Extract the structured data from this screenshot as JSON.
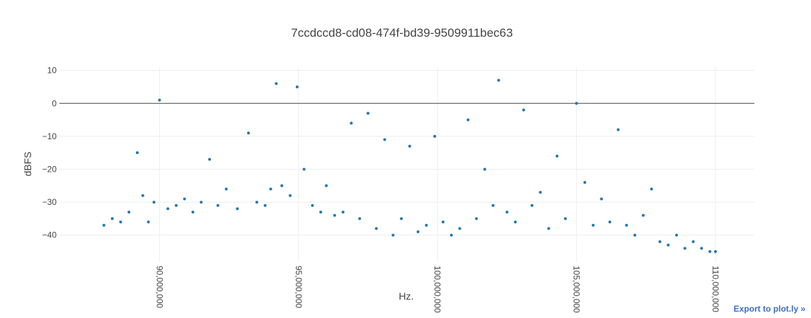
{
  "export_link": {
    "label": "Export to plot.ly »"
  },
  "chart_data": {
    "type": "scatter",
    "title": "7ccdccd8-cd08-474f-bd39-9509911bec63",
    "xlabel": "Hz.",
    "ylabel": "dBFS",
    "xlim": [
      86400000,
      111400000
    ],
    "ylim": [
      -48,
      11
    ],
    "xticks": [
      90000000,
      95000000,
      100000000,
      105000000,
      110000000
    ],
    "xtick_labels": [
      "90,000,000",
      "95,000,000",
      "100,000,000",
      "105,000,000",
      "110,000,000"
    ],
    "yticks": [
      10,
      0,
      -10,
      -20,
      -30,
      -40
    ],
    "ytick_labels": [
      "10",
      "0",
      "−10",
      "−20",
      "−30",
      "−40"
    ],
    "grid": true,
    "zero_line": true,
    "marker_color": "#1f77b4",
    "series": [
      {
        "x": [
          88000000,
          88300000,
          88600000,
          88900000,
          89200000,
          89400000,
          89600000,
          89800000,
          90000000,
          90300000,
          90600000,
          90900000,
          91200000,
          91500000,
          91800000,
          92100000,
          92400000,
          92800000,
          93200000,
          93500000,
          93800000,
          94000000,
          94200000,
          94400000,
          94700000,
          94950000,
          95200000,
          95500000,
          95800000,
          96000000,
          96300000,
          96600000,
          96900000,
          97200000,
          97500000,
          97800000,
          98100000,
          98400000,
          98700000,
          99000000,
          99300000,
          99600000,
          99900000,
          100200000,
          100500000,
          100800000,
          101100000,
          101400000,
          101700000,
          102000000,
          102200000,
          102500000,
          102800000,
          103100000,
          103400000,
          103700000,
          104000000,
          104300000,
          104600000,
          105000000,
          105300000,
          105600000,
          105900000,
          106200000,
          106500000,
          106800000,
          107100000,
          107400000,
          107700000,
          108000000,
          108300000,
          108600000,
          108900000,
          109200000,
          109500000,
          109800000,
          110000000
        ],
        "y": [
          -37,
          -35,
          -36,
          -33,
          -15,
          -28,
          -36,
          -30,
          1,
          -32,
          -31,
          -29,
          -33,
          -30,
          -17,
          -31,
          -26,
          -32,
          -9,
          -30,
          -31,
          -26,
          6,
          -25,
          -28,
          5,
          -20,
          -31,
          -33,
          -25,
          -34,
          -33,
          -6,
          -35,
          -3,
          -38,
          -11,
          -40,
          -35,
          -13,
          -39,
          -37,
          -10,
          -36,
          -40,
          -38,
          -5,
          -35,
          -20,
          -31,
          7,
          -33,
          -36,
          -2,
          -31,
          -27,
          -38,
          -16,
          -35,
          0,
          -24,
          -37,
          -29,
          -36,
          -8,
          -37,
          -40,
          -34,
          -26,
          -42,
          -43,
          -40,
          -44,
          -42,
          -44,
          -45,
          -45
        ]
      }
    ]
  }
}
